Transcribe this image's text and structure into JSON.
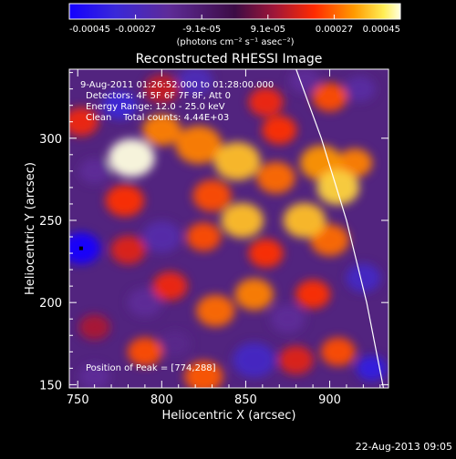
{
  "chart_data": {
    "type": "heatmap",
    "title": "Reconstructed RHESSI Image",
    "xlabel": "Heliocentric X (arcsec)",
    "ylabel": "Heliocentric Y (arcsec)",
    "xlim": [
      745,
      935
    ],
    "ylim": [
      148,
      342
    ],
    "xticks": [
      750,
      800,
      850,
      900
    ],
    "yticks": [
      150,
      200,
      250,
      300
    ],
    "colorbar": {
      "ticks": [
        "-0.00045",
        "-0.00027",
        "-9.1e-05",
        "9.1e-05",
        "0.00027",
        "0.00045"
      ],
      "unit": "(photons cm⁻² s⁻¹ asec⁻²)",
      "range": [
        -0.00045,
        0.00045
      ]
    },
    "annotations": [
      "9-Aug-2011 01:26:52.000 to 01:28:00.000",
      "Detectors: 4F 5F 6F 7F 8F, Att 0",
      "Energy Range: 12.0 - 25.0 keV",
      "Clean    Total counts: 4.44E+03"
    ],
    "peak": {
      "label": "Position of Peak = [774,288]",
      "x": 774,
      "y": 288
    },
    "limb_arc": [
      [
        880,
        342
      ],
      [
        895,
        300
      ],
      [
        910,
        250
      ],
      [
        922,
        200
      ],
      [
        932,
        148
      ]
    ],
    "intensity_blobs": [
      {
        "x": 782,
        "y": 288,
        "v": 0.00045,
        "s": 12
      },
      {
        "x": 800,
        "y": 305,
        "v": 0.0003,
        "s": 10
      },
      {
        "x": 822,
        "y": 296,
        "v": 0.0003,
        "s": 12
      },
      {
        "x": 845,
        "y": 286,
        "v": 0.00036,
        "s": 12
      },
      {
        "x": 868,
        "y": 276,
        "v": 0.00028,
        "s": 10
      },
      {
        "x": 870,
        "y": 305,
        "v": 0.00022,
        "s": 9
      },
      {
        "x": 862,
        "y": 322,
        "v": 0.0002,
        "s": 9
      },
      {
        "x": 895,
        "y": 285,
        "v": 0.00032,
        "s": 11
      },
      {
        "x": 905,
        "y": 270,
        "v": 0.00038,
        "s": 11
      },
      {
        "x": 915,
        "y": 285,
        "v": 0.0003,
        "s": 9
      },
      {
        "x": 778,
        "y": 262,
        "v": 0.00022,
        "s": 10
      },
      {
        "x": 830,
        "y": 265,
        "v": 0.00025,
        "s": 10
      },
      {
        "x": 848,
        "y": 250,
        "v": 0.00036,
        "s": 11
      },
      {
        "x": 885,
        "y": 250,
        "v": 0.00036,
        "s": 11
      },
      {
        "x": 900,
        "y": 238,
        "v": 0.00028,
        "s": 10
      },
      {
        "x": 825,
        "y": 240,
        "v": 0.00025,
        "s": 9
      },
      {
        "x": 862,
        "y": 230,
        "v": 0.00022,
        "s": 9
      },
      {
        "x": 780,
        "y": 232,
        "v": 0.00018,
        "s": 9
      },
      {
        "x": 805,
        "y": 210,
        "v": 0.0002,
        "s": 9
      },
      {
        "x": 832,
        "y": 195,
        "v": 0.00028,
        "s": 10
      },
      {
        "x": 855,
        "y": 205,
        "v": 0.0003,
        "s": 10
      },
      {
        "x": 890,
        "y": 205,
        "v": 0.00022,
        "s": 9
      },
      {
        "x": 905,
        "y": 170,
        "v": 0.00025,
        "s": 9
      },
      {
        "x": 790,
        "y": 170,
        "v": 0.00025,
        "s": 9
      },
      {
        "x": 825,
        "y": 155,
        "v": 0.00026,
        "s": 10
      },
      {
        "x": 880,
        "y": 165,
        "v": 0.00018,
        "s": 9
      },
      {
        "x": 760,
        "y": 185,
        "v": 0.00012,
        "s": 8
      },
      {
        "x": 900,
        "y": 325,
        "v": 0.00025,
        "s": 9
      },
      {
        "x": 800,
        "y": 330,
        "v": 0.00015,
        "s": 9
      },
      {
        "x": 752,
        "y": 310,
        "v": 0.0002,
        "s": 9
      },
      {
        "x": 752,
        "y": 233,
        "v": -0.00045,
        "s": 10
      },
      {
        "x": 775,
        "y": 320,
        "v": -0.00032,
        "s": 9
      },
      {
        "x": 760,
        "y": 280,
        "v": -0.00018,
        "s": 8
      },
      {
        "x": 800,
        "y": 240,
        "v": -0.00022,
        "s": 10
      },
      {
        "x": 790,
        "y": 200,
        "v": -0.00018,
        "s": 9
      },
      {
        "x": 820,
        "y": 335,
        "v": -0.00025,
        "s": 9
      },
      {
        "x": 855,
        "y": 165,
        "v": -0.00028,
        "s": 11
      },
      {
        "x": 808,
        "y": 175,
        "v": -0.00015,
        "s": 8
      },
      {
        "x": 875,
        "y": 190,
        "v": -0.00018,
        "s": 9
      },
      {
        "x": 920,
        "y": 215,
        "v": -0.00028,
        "s": 9
      },
      {
        "x": 925,
        "y": 160,
        "v": -0.00035,
        "s": 8
      },
      {
        "x": 885,
        "y": 335,
        "v": -0.00018,
        "s": 8
      },
      {
        "x": 760,
        "y": 155,
        "v": -0.00018,
        "s": 8
      },
      {
        "x": 918,
        "y": 330,
        "v": -0.0002,
        "s": 8
      }
    ]
  },
  "footer": {
    "timestamp": "22-Aug-2013 09:05"
  }
}
